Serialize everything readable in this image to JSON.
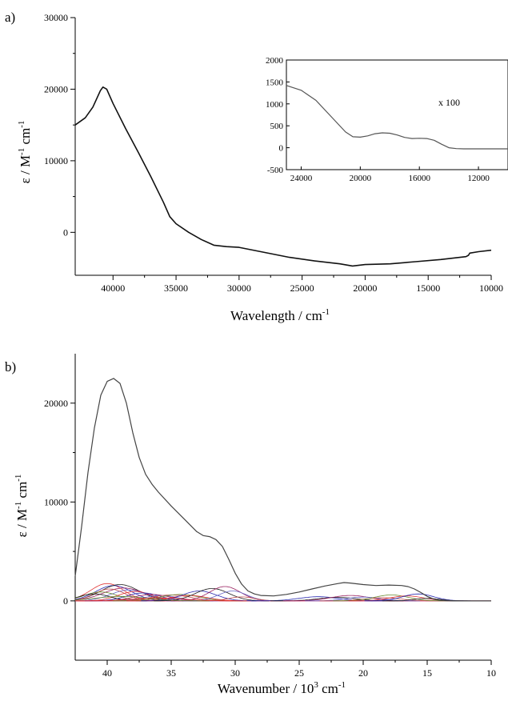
{
  "panels": {
    "a": {
      "letter": "a)"
    },
    "b": {
      "letter": "b)"
    }
  },
  "colors": {
    "axis": "#000000",
    "main_line": "#111111",
    "inset_line": "#555555",
    "envelope_line": "#444444",
    "component_palette": [
      "#e03030",
      "#2a2ab0",
      "#202020",
      "#9a2060",
      "#6a6ac8",
      "#c05050",
      "#6a8a30"
    ]
  },
  "chart_data": [
    {
      "id": "a-main",
      "type": "line",
      "title": "",
      "xlabel": "Wavelength / cm",
      "xlabel_sup": "-1",
      "ylabel": "ε / M",
      "ylabel_sup1": "-1",
      "ylabel_mid": " cm",
      "ylabel_sup2": "-1",
      "xlim": [
        43000,
        10000
      ],
      "ylim": [
        -6000,
        30000
      ],
      "xticks": [
        40000,
        35000,
        30000,
        25000,
        20000,
        15000,
        10000
      ],
      "xtick_labels": [
        "40000",
        "35000",
        "30000",
        "25000",
        "20000",
        "15000",
        "10000"
      ],
      "yticks": [
        0,
        10000,
        20000,
        30000
      ],
      "ytick_labels": [
        "0",
        "10000",
        "20000",
        "30000"
      ],
      "series": [
        {
          "x": [
            43000,
            42200,
            41600,
            41000,
            40800,
            40500,
            40000,
            39000,
            38000,
            37000,
            36000,
            35500,
            35000,
            34000,
            33000,
            32000,
            31000,
            30000,
            28000,
            26000,
            24000,
            22000,
            21000,
            20000,
            18000,
            16000,
            14000,
            12000,
            11800,
            11700,
            11000,
            10000
          ],
          "y": [
            15000,
            16000,
            17500,
            19800,
            20300,
            20000,
            18000,
            14500,
            11200,
            7800,
            4200,
            2200,
            1200,
            0,
            -1000,
            -1800,
            -2000,
            -2100,
            -2800,
            -3500,
            -4000,
            -4400,
            -4700,
            -4500,
            -4400,
            -4100,
            -3800,
            -3400,
            -3200,
            -2900,
            -2700,
            -2500
          ]
        }
      ]
    },
    {
      "id": "a-inset",
      "type": "line",
      "annotation": "x 100",
      "xlim": [
        25000,
        10000
      ],
      "ylim": [
        -500,
        2000
      ],
      "xticks": [
        24000,
        20000,
        16000,
        12000
      ],
      "xtick_labels": [
        "24000",
        "20000",
        "16000",
        "12000"
      ],
      "yticks": [
        -500,
        0,
        500,
        1000,
        1500,
        2000
      ],
      "ytick_labels": [
        "-500",
        "0",
        "500",
        "1000",
        "1500",
        "2000"
      ],
      "series": [
        {
          "x": [
            25000,
            24000,
            23000,
            22000,
            21000,
            20500,
            20000,
            19500,
            19000,
            18500,
            18000,
            17500,
            17000,
            16500,
            16000,
            15500,
            15000,
            14500,
            14000,
            13500,
            13000,
            12000,
            11000,
            10000
          ],
          "y": [
            1420,
            1310,
            1080,
            720,
            360,
            250,
            240,
            270,
            320,
            340,
            330,
            290,
            235,
            210,
            215,
            210,
            170,
            80,
            0,
            -20,
            -25,
            -25,
            -25,
            -25
          ]
        }
      ]
    },
    {
      "id": "b-deconvolution",
      "type": "line",
      "title": "",
      "xlabel": "Wavenumber / 10",
      "xlabel_sup": "3",
      "xlabel_tail": " cm",
      "xlabel_sup2": "-1",
      "ylabel": "ε / M",
      "ylabel_sup1": "-1",
      "ylabel_mid": " cm",
      "ylabel_sup2": "-1",
      "xlim": [
        42.5,
        10
      ],
      "ylim": [
        -6000,
        25000
      ],
      "xticks": [
        40,
        35,
        30,
        25,
        20,
        15,
        10
      ],
      "xtick_labels": [
        "40",
        "35",
        "30",
        "25",
        "20",
        "15",
        "10"
      ],
      "yticks": [
        0,
        10000,
        20000
      ],
      "ytick_labels": [
        "0",
        "10000",
        "20000"
      ],
      "envelope": {
        "x": [
          42.5,
          42,
          41.5,
          41,
          40.5,
          40,
          39.5,
          39,
          38.5,
          38,
          37.5,
          37,
          36.5,
          36,
          35,
          34,
          33,
          32.5,
          32,
          31.5,
          31,
          30.5,
          30,
          29.5,
          29,
          28.5,
          28,
          27,
          26,
          25,
          24,
          23,
          22,
          21.5,
          21,
          20,
          19,
          18,
          17,
          16.5,
          16,
          15.5,
          15,
          14.5,
          14,
          13.5,
          13,
          12,
          11,
          10
        ],
        "y": [
          2500,
          7500,
          13000,
          17500,
          20800,
          22200,
          22500,
          22000,
          20000,
          17000,
          14500,
          12800,
          11800,
          11000,
          9600,
          8300,
          7000,
          6600,
          6500,
          6200,
          5500,
          4200,
          2800,
          1700,
          1000,
          700,
          550,
          500,
          650,
          900,
          1200,
          1500,
          1750,
          1850,
          1800,
          1650,
          1550,
          1600,
          1550,
          1450,
          1200,
          850,
          450,
          180,
          60,
          20,
          0,
          0,
          0,
          0
        ]
      },
      "components": [
        {
          "center": 40.0,
          "height": 1750,
          "width": 1.3
        },
        {
          "center": 39.5,
          "height": 1550,
          "width": 1.4
        },
        {
          "center": 39.0,
          "height": 1650,
          "width": 1.5
        },
        {
          "center": 38.7,
          "height": 1300,
          "width": 1.6
        },
        {
          "center": 38.3,
          "height": 1100,
          "width": 1.4
        },
        {
          "center": 39.8,
          "height": 1200,
          "width": 1.2
        },
        {
          "center": 40.5,
          "height": 900,
          "width": 1.3
        },
        {
          "center": 37.8,
          "height": 950,
          "width": 1.3
        },
        {
          "center": 37.2,
          "height": 800,
          "width": 1.3
        },
        {
          "center": 41.0,
          "height": 700,
          "width": 1.2
        },
        {
          "center": 36.5,
          "height": 650,
          "width": 1.4
        },
        {
          "center": 35.8,
          "height": 550,
          "width": 1.3
        },
        {
          "center": 35.0,
          "height": 600,
          "width": 1.5
        },
        {
          "center": 34.3,
          "height": 650,
          "width": 1.5
        },
        {
          "center": 33.6,
          "height": 550,
          "width": 1.4
        },
        {
          "center": 32.8,
          "height": 1000,
          "width": 1.3
        },
        {
          "center": 31.8,
          "height": 1250,
          "width": 1.3
        },
        {
          "center": 30.8,
          "height": 1450,
          "width": 1.2
        },
        {
          "center": 30.2,
          "height": 1000,
          "width": 1.1
        },
        {
          "center": 29.5,
          "height": 400,
          "width": 1.0
        },
        {
          "center": 38.9,
          "height": 450,
          "width": 2.0
        },
        {
          "center": 36.0,
          "height": 300,
          "width": 2.0
        },
        {
          "center": 23.5,
          "height": 420,
          "width": 1.5
        },
        {
          "center": 22.0,
          "height": 350,
          "width": 1.5
        },
        {
          "center": 21.0,
          "height": 550,
          "width": 1.5
        },
        {
          "center": 20.0,
          "height": 380,
          "width": 1.3
        },
        {
          "center": 18.5,
          "height": 320,
          "width": 1.4
        },
        {
          "center": 17.8,
          "height": 600,
          "width": 1.3
        },
        {
          "center": 16.6,
          "height": 500,
          "width": 1.3
        },
        {
          "center": 15.7,
          "height": 700,
          "width": 1.2
        },
        {
          "center": 15.0,
          "height": 250,
          "width": 1.0
        }
      ]
    }
  ]
}
